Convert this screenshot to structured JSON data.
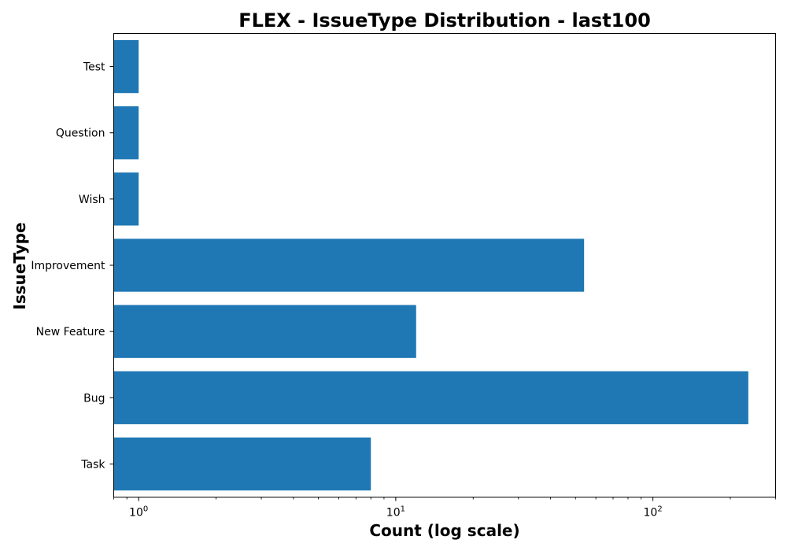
{
  "chart_data": {
    "type": "bar",
    "orientation": "horizontal",
    "title": "FLEX - IssueType Distribution - last100",
    "xlabel": "Count (log scale)",
    "ylabel": "IssueType",
    "xscale": "log",
    "xlim": [
      0.8,
      300
    ],
    "categories": [
      "Task",
      "Bug",
      "New Feature",
      "Improvement",
      "Wish",
      "Question",
      "Test"
    ],
    "values": [
      8,
      235,
      12,
      54,
      1,
      1,
      1
    ],
    "bar_color": "#1f77b4",
    "x_major_ticks": [
      {
        "base": "10",
        "exp": "0",
        "value": 1
      },
      {
        "base": "10",
        "exp": "1",
        "value": 10
      },
      {
        "base": "10",
        "exp": "2",
        "value": 100
      }
    ],
    "grid": false,
    "legend": "none"
  }
}
